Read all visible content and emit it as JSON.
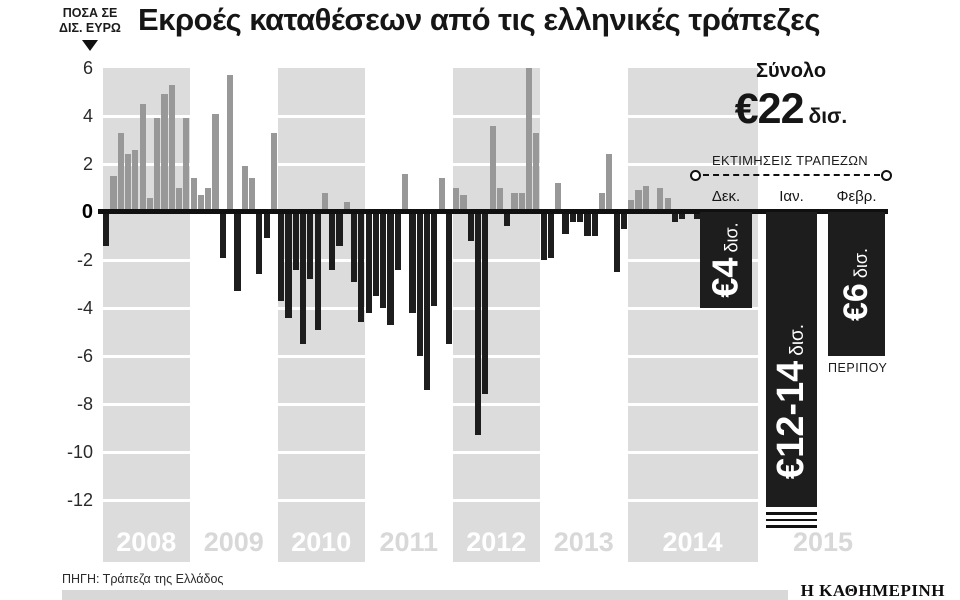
{
  "header": {
    "axis_unit_line1": "ΠΟΣΑ ΣΕ",
    "axis_unit_line2": "ΔΙΣ. ΕΥΡΩ",
    "title": "Εκροές καταθέσεων από τις ελληνικές τράπεζες"
  },
  "chart_data": {
    "type": "bar",
    "title": "Εκροές καταθέσεων από τις ελληνικές τράπεζες",
    "ylabel": "ΠΟΣΑ ΣΕ ΔΙΣ. ΕΥΡΩ",
    "ylim": [
      -12,
      6
    ],
    "yticks": [
      6,
      4,
      2,
      0,
      -2,
      -4,
      -6,
      -8,
      -10,
      -12
    ],
    "grid": "horizontal white lines over alternating gray year bands",
    "legend_position": "none",
    "series": [
      {
        "year": "2008",
        "values": [
          -1.4,
          1.5,
          3.3,
          2.4,
          2.6,
          4.5,
          0.6,
          3.9,
          4.9,
          5.3,
          1.0,
          3.9
        ]
      },
      {
        "year": "2009",
        "values": [
          1.4,
          0.7,
          1.0,
          4.1,
          -1.9,
          5.7,
          -3.3,
          1.9,
          1.4,
          -2.6,
          -1.1,
          3.3
        ]
      },
      {
        "year": "2010",
        "values": [
          -3.7,
          -4.4,
          -2.4,
          -5.5,
          -2.8,
          -4.9,
          0.8,
          -2.4,
          -1.4,
          0.4,
          -2.9,
          -4.6
        ]
      },
      {
        "year": "2011",
        "values": [
          -4.2,
          -3.5,
          -4.0,
          -4.7,
          -2.4,
          1.6,
          -4.2,
          -6.0,
          -7.4,
          -3.9,
          1.4,
          -5.5
        ]
      },
      {
        "year": "2012",
        "values": [
          1.0,
          0.7,
          -1.2,
          -9.3,
          -7.6,
          3.6,
          1.0,
          -0.6,
          0.8,
          0.8,
          6.0,
          3.3
        ]
      },
      {
        "year": "2013",
        "values": [
          -2.0,
          -1.9,
          1.2,
          -0.9,
          -0.4,
          -0.4,
          -1.0,
          -1.0,
          0.8,
          2.4,
          -2.5,
          -0.7
        ]
      },
      {
        "year": "2014",
        "values": [
          0.5,
          0.9,
          1.1,
          0.1,
          1.0,
          0.6,
          -0.4,
          -0.3,
          0.1,
          -0.3,
          -0.5
        ]
      }
    ],
    "final_year_label": "2015",
    "total": {
      "label": "Σύνολο",
      "amount": "€22",
      "unit": "δισ."
    },
    "estimates": {
      "heading": "ΕΚΤΙΜΗΣΕΙΣ ΤΡΑΠΕΖΩΝ",
      "months": [
        {
          "month": "Δεκ.",
          "amount": "€4",
          "unit": "δισ.",
          "value_bn": 4,
          "truncated": false,
          "note": ""
        },
        {
          "month": "Ιαν.",
          "amount": "€12-14",
          "unit": "δισ.",
          "value_bn": 12.3,
          "truncated": true,
          "note": ""
        },
        {
          "month": "Φεβρ.",
          "amount": "€6",
          "unit": "δισ.",
          "value_bn": 6,
          "truncated": false,
          "note": "ΠΕΡΙΠΟΥ"
        }
      ]
    }
  },
  "colors": {
    "positive_bar": "#989898",
    "negative_bar": "#1d1d1d",
    "year_band": "#dcdcdc",
    "year_label_on_band": "#ffffff",
    "year_label_on_white": "#d8d8d8",
    "baseline": "#101010",
    "estimate_bar": "#1d1d1d"
  },
  "footer": {
    "source": "ΠΗΓΗ: Τράπεζα της Ελλάδος",
    "logo": "Η ΚΑΘΗΜΕΡΙΝΗ"
  }
}
